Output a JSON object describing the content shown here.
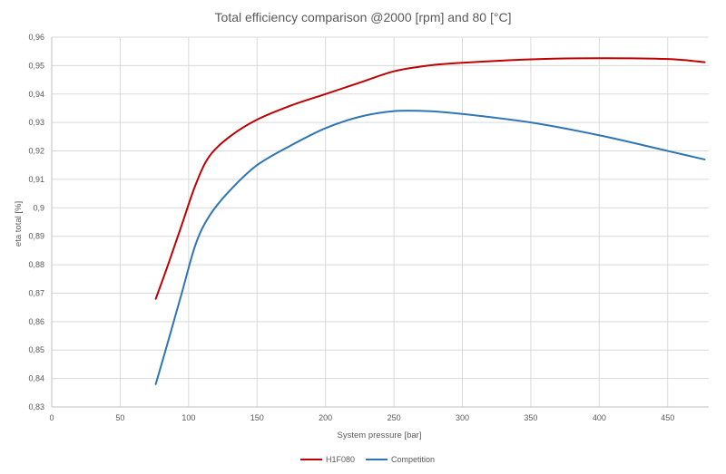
{
  "chart_data": {
    "type": "line",
    "title": "Total efficiency comparison @2000 [rpm] and 80 [°C]",
    "xlabel": "System pressure [bar]",
    "ylabel": "eta total [%]",
    "xlim": [
      0,
      480
    ],
    "ylim": [
      0.83,
      0.96
    ],
    "x_ticks": [
      0,
      50,
      100,
      150,
      200,
      250,
      300,
      350,
      400,
      450
    ],
    "x_tick_labels": [
      "0",
      "50",
      "100",
      "150",
      "200",
      "250",
      "300",
      "350",
      "400",
      "450"
    ],
    "y_ticks": [
      0.83,
      0.84,
      0.85,
      0.86,
      0.87,
      0.88,
      0.89,
      0.9,
      0.91,
      0.92,
      0.93,
      0.94,
      0.95,
      0.96
    ],
    "y_tick_labels": [
      "0,83",
      "0,84",
      "0,85",
      "0,86",
      "0,87",
      "0,88",
      "0,89",
      "0,9",
      "0,91",
      "0,92",
      "0,93",
      "0,94",
      "0,95",
      "0,96"
    ],
    "grid": "vertical-and-horizontal",
    "legend_position": "bottom",
    "series": [
      {
        "name": "H1F080",
        "color": "#c00000",
        "x": [
          76,
          85,
          95,
          105,
          115,
          130,
          150,
          175,
          200,
          225,
          250,
          275,
          300,
          350,
          400,
          450,
          477
        ],
        "y": [
          0.868,
          0.88,
          0.894,
          0.908,
          0.918,
          0.925,
          0.931,
          0.936,
          0.94,
          0.944,
          0.948,
          0.95,
          0.951,
          0.9522,
          0.9526,
          0.9523,
          0.9512
        ]
      },
      {
        "name": "Competition",
        "color": "#2e75b6",
        "x": [
          76,
          85,
          95,
          105,
          115,
          130,
          150,
          175,
          200,
          225,
          250,
          275,
          300,
          350,
          400,
          450,
          477
        ],
        "y": [
          0.838,
          0.853,
          0.87,
          0.887,
          0.897,
          0.906,
          0.915,
          0.922,
          0.928,
          0.932,
          0.934,
          0.934,
          0.933,
          0.93,
          0.9255,
          0.92,
          0.917
        ]
      }
    ]
  }
}
